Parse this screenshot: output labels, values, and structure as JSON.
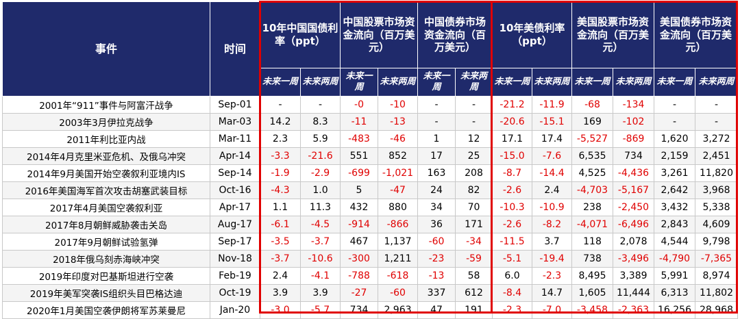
{
  "table": {
    "headers": [
      "事件",
      "时间"
    ],
    "groups": [
      "10年中国国债利率（ppt）",
      "中国股票市场资金流向（百万美元）",
      "中国债券市场资金流向（百万美元）",
      "10年美债利率（ppt）",
      "美国股票市场资金流向（百万美元）",
      "美国债券市场资金流向（百万美元）"
    ],
    "subheaders": [
      "未来一周",
      "未来两周",
      "未来一周",
      "未来两周",
      "未来一周",
      "未来两周",
      "未来一周",
      "未来两周",
      "未来一周",
      "未来两周",
      "未来一周",
      "未来两周"
    ],
    "rows": [
      [
        "2001年“911”事件与阿富汗战争",
        "Sep-01",
        "-",
        "-",
        "-0",
        "-10",
        "-",
        "-",
        "-21.2",
        "-11.9",
        "-68",
        "-134",
        "-",
        "-"
      ],
      [
        "2003年3月伊拉克战争",
        "Mar-03",
        "14.2",
        "8.3",
        "-11",
        "-13",
        "-",
        "-",
        "-20.6",
        "-15.1",
        "169",
        "-102",
        "-",
        "-"
      ],
      [
        "2011年利比亚内战",
        "Mar-11",
        "2.3",
        "5.9",
        "-483",
        "-46",
        "1",
        "12",
        "17.1",
        "17.4",
        "-5,527",
        "-869",
        "1,620",
        "3,272"
      ],
      [
        "2014年4月克里米亚危机、及俄乌冲突",
        "Apr-14",
        "-3.3",
        "-21.6",
        "551",
        "852",
        "17",
        "25",
        "-15.0",
        "-7.6",
        "6,535",
        "734",
        "2,159",
        "2,451"
      ],
      [
        "2014年9月美国开始空袭叙利亚境内IS",
        "Sep-14",
        "-1.9",
        "-2.9",
        "-699",
        "-1,021",
        "163",
        "208",
        "-8.7",
        "-14.4",
        "4,525",
        "-4,436",
        "3,261",
        "11,820"
      ],
      [
        "2016年美国海军首次攻击胡塞武装目标",
        "Oct-16",
        "-4.3",
        "1.0",
        "5",
        "-47",
        "24",
        "82",
        "-2.6",
        "2.4",
        "-4,703",
        "-5,167",
        "2,642",
        "3,968"
      ],
      [
        "2017年4月美国空袭叙利亚",
        "Apr-17",
        "1.1",
        "11.3",
        "432",
        "880",
        "34",
        "70",
        "-10.3",
        "-10.9",
        "238",
        "-2,450",
        "3,432",
        "5,338"
      ],
      [
        "2017年8月朝鲜威胁袭击关岛",
        "Aug-17",
        "-6.1",
        "-4.5",
        "-914",
        "-866",
        "36",
        "171",
        "-2.6",
        "-8.2",
        "-4,071",
        "-6,496",
        "2,843",
        "4,609"
      ],
      [
        "2017年9月朝鲜试验氢弹",
        "Sep-17",
        "-3.5",
        "-3.7",
        "467",
        "1,137",
        "-60",
        "-34",
        "-11.5",
        "3.7",
        "118",
        "2,078",
        "4,544",
        "9,798"
      ],
      [
        "2018年俄乌刻赤海峡冲突",
        "Nov-18",
        "-3.7",
        "-10.6",
        "-300",
        "1,211",
        "-23",
        "-59",
        "-5.1",
        "-19.4",
        "738",
        "-3,496",
        "-4,790",
        "-7,365"
      ],
      [
        "2019年印度对巴基斯坦进行空袭",
        "Feb-19",
        "2.4",
        "-4.1",
        "-788",
        "-618",
        "-13",
        "58",
        "6.0",
        "-2.3",
        "8,495",
        "3,389",
        "5,991",
        "8,974"
      ],
      [
        "2019年美军突袭IS组织头目巴格达迪",
        "Oct-19",
        "3.9",
        "3.9",
        "-27",
        "-60",
        "337",
        "612",
        "-8.4",
        "14.7",
        "1,605",
        "11,444",
        "6,313",
        "11,802"
      ],
      [
        "2020年1月美国空袭伊朗将军苏莱曼尼",
        "Jan-20",
        "-3.0",
        "-5.7",
        "734",
        "2,963",
        "47",
        "191",
        "-2.3",
        "-7.0",
        "-3,458",
        "-2,363",
        "16,256",
        "28,968"
      ]
    ]
  }
}
